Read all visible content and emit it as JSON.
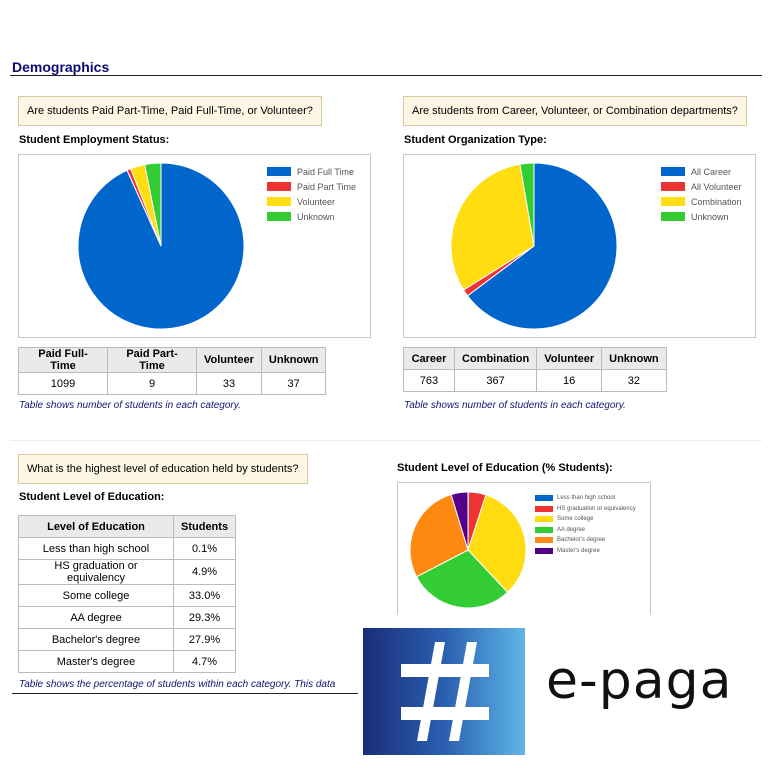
{
  "section_title": "Demographics",
  "employment": {
    "question": "Are students Paid Part-Time, Paid Full-Time, or Volunteer?",
    "chart_title": "Student Employment Status:",
    "legend": [
      "Paid Full Time",
      "Paid Part Time",
      "Volunteer",
      "Unknown"
    ],
    "headers": [
      "Paid Full-Time",
      "Paid Part-Time",
      "Volunteer",
      "Unknown"
    ],
    "values": [
      "1099",
      "9",
      "33",
      "37"
    ],
    "note": "Table shows number of students in each category."
  },
  "organization": {
    "question": "Are students from Career, Volunteer, or Combination departments?",
    "chart_title": "Student Organization Type:",
    "legend": [
      "All Career",
      "All Volunteer",
      "Combination",
      "Unknown"
    ],
    "headers": [
      "Career",
      "Combination",
      "Volunteer",
      "Unknown"
    ],
    "values": [
      "763",
      "367",
      "16",
      "32"
    ],
    "note": "Table shows number of students in each category."
  },
  "education": {
    "question": "What is the highest level of education held by students?",
    "table_title": "Student Level of Education:",
    "chart_title": "Student Level of Education (% Students):",
    "headers": [
      "Level of Education",
      "Students"
    ],
    "rows": [
      [
        "Less than high school",
        "0.1%"
      ],
      [
        "HS graduation or equivalency",
        "4.9%"
      ],
      [
        "Some college",
        "33.0%"
      ],
      [
        "AA degree",
        "29.3%"
      ],
      [
        "Bachelor's degree",
        "27.9%"
      ],
      [
        "Master's degree",
        "4.7%"
      ]
    ],
    "legend": [
      "Less than high school",
      "HS graduation or equivalency",
      "Some college",
      "AA degree",
      "Bachelor's degree",
      "Master's degree"
    ],
    "note": "Table shows the percentage of students within each category. This data"
  },
  "logo": {
    "text": "e-paga"
  },
  "colors": {
    "blue": "#0066cc",
    "red": "#ee3333",
    "yellow": "#ffdd11",
    "green": "#33cc33",
    "orange": "#ff8811",
    "purple": "#550088"
  },
  "chart_data": [
    {
      "type": "pie",
      "title": "Student Employment Status:",
      "categories": [
        "Paid Full Time",
        "Paid Part Time",
        "Volunteer",
        "Unknown"
      ],
      "values": [
        1099,
        9,
        33,
        37
      ],
      "colors": [
        "#0066cc",
        "#ee3333",
        "#ffdd11",
        "#33cc33"
      ],
      "legend_position": "right"
    },
    {
      "type": "pie",
      "title": "Student Organization Type:",
      "categories": [
        "All Career",
        "All Volunteer",
        "Combination",
        "Unknown"
      ],
      "values": [
        763,
        16,
        367,
        32
      ],
      "colors": [
        "#0066cc",
        "#ee3333",
        "#ffdd11",
        "#33cc33"
      ],
      "legend_position": "right"
    },
    {
      "type": "pie",
      "title": "Student Level of Education (% Students):",
      "categories": [
        "Less than high school",
        "HS graduation or equivalency",
        "Some college",
        "AA degree",
        "Bachelor's degree",
        "Master's degree"
      ],
      "values": [
        0.1,
        4.9,
        33.0,
        29.3,
        27.9,
        4.7
      ],
      "colors": [
        "#0066cc",
        "#ee3333",
        "#ffdd11",
        "#33cc33",
        "#ff8811",
        "#550088"
      ],
      "legend_position": "right"
    }
  ]
}
